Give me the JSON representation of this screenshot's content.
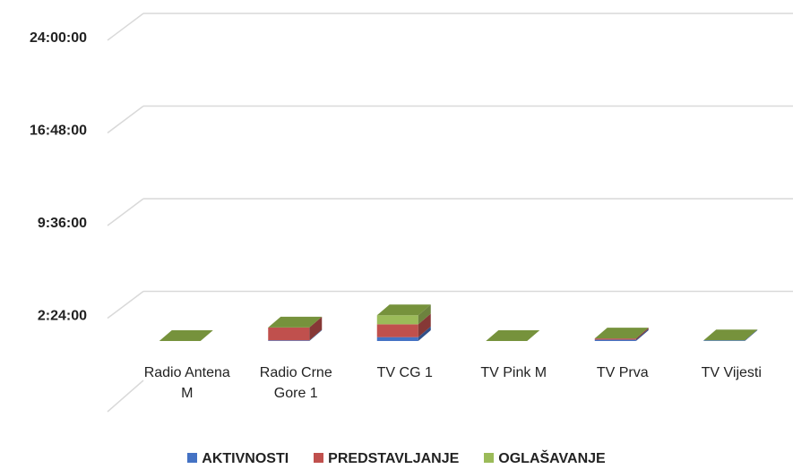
{
  "chart_data": {
    "type": "bar3d_stacked",
    "categories": [
      "Radio Antena M",
      "Radio Crne Gore 1",
      "TV CG 1",
      "TV Pink M",
      "TV Prva",
      "TV Vijesti"
    ],
    "series": [
      {
        "name": "AKTIVNOSTI",
        "color": "#4472c4",
        "values": [
          0,
          0.05,
          0.3,
          0,
          0.1,
          0.05
        ]
      },
      {
        "name": "PREDSTAVLJANJE",
        "color": "#c0504d",
        "values": [
          0,
          1.0,
          1.0,
          0,
          0.1,
          0
        ]
      },
      {
        "name": "OGLAŠAVANJE",
        "color": "#9bbb59",
        "values": [
          0,
          0,
          0.7,
          0,
          0,
          0
        ]
      }
    ],
    "ylim": [
      0,
      24
    ],
    "yticks": [
      {
        "value": 2.4,
        "label": "2:24:00"
      },
      {
        "value": 9.6,
        "label": "9:36:00"
      },
      {
        "value": 16.8,
        "label": "16:48:00"
      },
      {
        "value": 24,
        "label": "24:00:00"
      }
    ],
    "grid": true,
    "legend": "bottom"
  }
}
